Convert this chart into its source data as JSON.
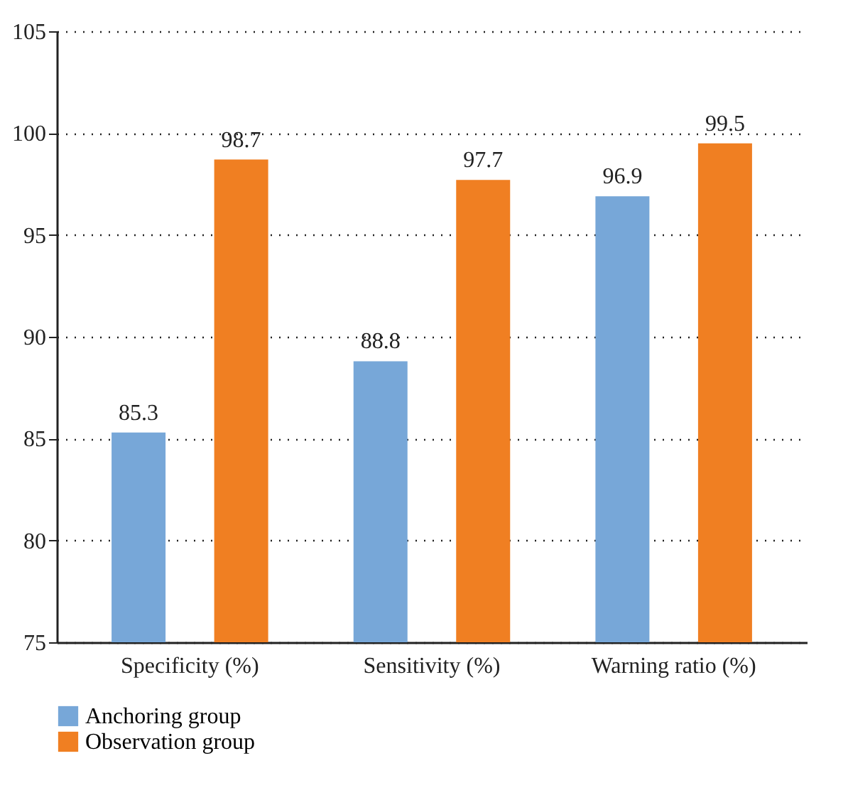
{
  "chart_data": {
    "type": "bar",
    "categories": [
      "Specificity (%)",
      "Sensitivity (%)",
      "Warning ratio (%)"
    ],
    "series": [
      {
        "name": "Anchoring group",
        "color": "#77a7d8",
        "values": [
          85.3,
          88.8,
          96.9
        ]
      },
      {
        "name": "Observation group",
        "color": "#f07f22",
        "values": [
          98.7,
          97.7,
          99.5
        ]
      }
    ],
    "ylim": [
      75,
      105
    ],
    "yticks": [
      75,
      80,
      85,
      90,
      95,
      100,
      105
    ],
    "grid": "y",
    "legend": "bottom left",
    "data_labels": true
  }
}
